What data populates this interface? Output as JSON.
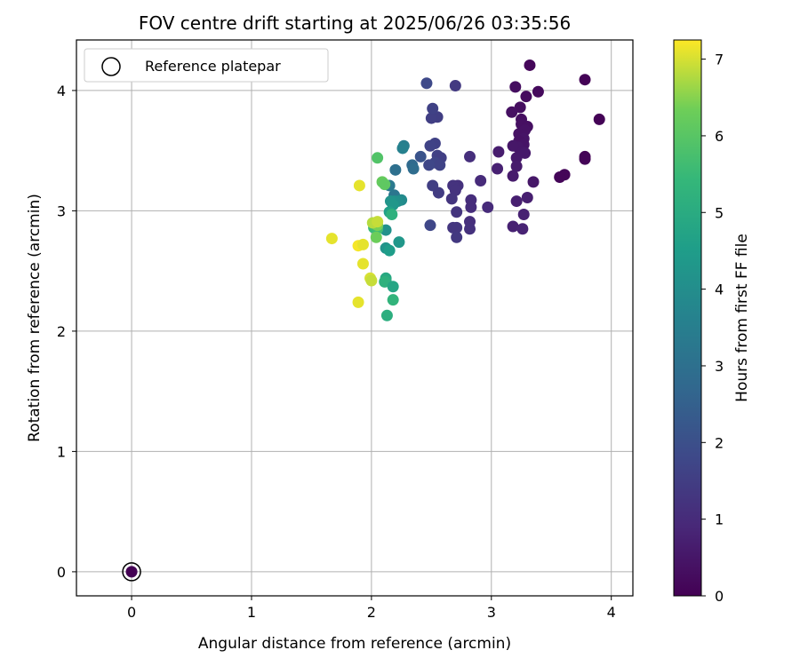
{
  "chart_data": {
    "type": "scatter",
    "title": "FOV centre drift starting at 2025/06/26 03:35:56",
    "xlabel": "Angular distance from reference (arcmin)",
    "ylabel": "Rotation from reference (arcmin)",
    "xlim": [
      -0.46,
      4.18
    ],
    "ylim": [
      -0.2,
      4.42
    ],
    "xticks": [
      0,
      1,
      2,
      3,
      4
    ],
    "yticks": [
      0,
      1,
      2,
      3,
      4
    ],
    "grid": true,
    "legend": {
      "placement": "top-left",
      "entries": [
        "Reference platepar"
      ]
    },
    "reference_point": {
      "x": 0,
      "y": 0,
      "hours": 0
    },
    "colorbar": {
      "label": "Hours from first FF file",
      "range": [
        0,
        7.25
      ],
      "ticks": [
        0,
        1,
        2,
        3,
        4,
        5,
        6,
        7
      ],
      "colormap": "viridis"
    },
    "points": [
      [
        3.78,
        4.09,
        0.05
      ],
      [
        3.9,
        3.76,
        0.05
      ],
      [
        3.78,
        3.45,
        0.05
      ],
      [
        3.78,
        3.43,
        0.08
      ],
      [
        3.61,
        3.3,
        0.1
      ],
      [
        3.57,
        3.28,
        0.1
      ],
      [
        3.32,
        4.21,
        0.15
      ],
      [
        3.39,
        3.99,
        0.2
      ],
      [
        3.29,
        3.95,
        0.25
      ],
      [
        3.24,
        3.86,
        0.3
      ],
      [
        3.2,
        4.03,
        0.3
      ],
      [
        3.17,
        3.82,
        0.35
      ],
      [
        3.25,
        3.76,
        0.3
      ],
      [
        3.25,
        3.72,
        0.35
      ],
      [
        3.3,
        3.7,
        0.35
      ],
      [
        3.28,
        3.67,
        0.4
      ],
      [
        3.23,
        3.64,
        0.4
      ],
      [
        3.27,
        3.6,
        0.45
      ],
      [
        3.23,
        3.58,
        0.4
      ],
      [
        3.27,
        3.55,
        0.45
      ],
      [
        3.22,
        3.53,
        0.5
      ],
      [
        3.18,
        3.54,
        0.5
      ],
      [
        3.26,
        3.49,
        0.5
      ],
      [
        3.28,
        3.48,
        0.55
      ],
      [
        3.21,
        3.44,
        0.55
      ],
      [
        3.21,
        3.37,
        0.6
      ],
      [
        3.18,
        3.29,
        0.6
      ],
      [
        3.35,
        3.24,
        0.5
      ],
      [
        3.06,
        3.49,
        0.65
      ],
      [
        3.05,
        3.35,
        0.75
      ],
      [
        3.3,
        3.11,
        0.7
      ],
      [
        3.21,
        3.08,
        0.7
      ],
      [
        3.27,
        2.97,
        0.75
      ],
      [
        3.18,
        2.87,
        0.75
      ],
      [
        3.26,
        2.85,
        0.8
      ],
      [
        2.97,
        3.03,
        1.0
      ],
      [
        2.91,
        3.25,
        1.0
      ],
      [
        2.83,
        3.09,
        1.05
      ],
      [
        2.83,
        3.03,
        1.05
      ],
      [
        2.82,
        3.45,
        1.1
      ],
      [
        2.82,
        2.91,
        1.1
      ],
      [
        2.82,
        2.85,
        1.15
      ],
      [
        2.72,
        3.21,
        1.15
      ],
      [
        2.68,
        3.21,
        1.2
      ],
      [
        2.7,
        3.17,
        1.2
      ],
      [
        2.67,
        3.1,
        1.25
      ],
      [
        2.71,
        2.99,
        1.25
      ],
      [
        2.68,
        2.86,
        1.3
      ],
      [
        2.71,
        2.86,
        1.3
      ],
      [
        2.71,
        2.78,
        1.35
      ],
      [
        2.7,
        4.04,
        1.4
      ],
      [
        2.55,
        3.78,
        1.5
      ],
      [
        2.5,
        3.77,
        1.55
      ],
      [
        2.51,
        3.85,
        1.6
      ],
      [
        2.53,
        3.56,
        1.6
      ],
      [
        2.49,
        3.54,
        1.65
      ],
      [
        2.55,
        3.46,
        1.6
      ],
      [
        2.58,
        3.44,
        1.55
      ],
      [
        2.53,
        3.4,
        1.7
      ],
      [
        2.57,
        3.38,
        1.65
      ],
      [
        2.48,
        3.38,
        1.75
      ],
      [
        2.51,
        3.21,
        1.5
      ],
      [
        2.56,
        3.15,
        1.45
      ],
      [
        2.49,
        2.88,
        1.75
      ],
      [
        2.46,
        4.06,
        1.8
      ],
      [
        2.41,
        3.45,
        2.1
      ],
      [
        2.34,
        3.38,
        2.8
      ],
      [
        2.35,
        3.35,
        2.9
      ],
      [
        2.27,
        3.54,
        3.5
      ],
      [
        2.26,
        3.52,
        3.6
      ],
      [
        2.2,
        3.34,
        3.0
      ],
      [
        2.19,
        3.13,
        3.2
      ],
      [
        2.15,
        3.21,
        3.3
      ],
      [
        2.25,
        3.09,
        3.9
      ],
      [
        2.22,
        3.08,
        4.0
      ],
      [
        2.19,
        3.08,
        4.1
      ],
      [
        2.16,
        3.08,
        4.2
      ],
      [
        2.18,
        3.05,
        4.3
      ],
      [
        2.15,
        2.99,
        4.6
      ],
      [
        2.17,
        2.97,
        5.2
      ],
      [
        2.12,
        2.84,
        4.1
      ],
      [
        2.12,
        2.69,
        4.2
      ],
      [
        2.23,
        2.74,
        4.3
      ],
      [
        2.15,
        2.67,
        4.5
      ],
      [
        2.02,
        2.86,
        5.5
      ],
      [
        2.05,
        2.85,
        5.6
      ],
      [
        2.04,
        2.78,
        6.3
      ],
      [
        2.05,
        2.88,
        6.4
      ],
      [
        2.05,
        3.44,
        5.9
      ],
      [
        2.09,
        3.24,
        6.2
      ],
      [
        2.11,
        3.22,
        6.1
      ],
      [
        2.12,
        2.44,
        4.9
      ],
      [
        2.12,
        2.42,
        5.0
      ],
      [
        2.11,
        2.41,
        5.2
      ],
      [
        2.18,
        2.37,
        4.8
      ],
      [
        2.18,
        2.26,
        5.3
      ],
      [
        2.13,
        2.13,
        5.1
      ],
      [
        2.01,
        2.9,
        6.8
      ],
      [
        2.05,
        2.91,
        6.9
      ],
      [
        1.67,
        2.77,
        7.1
      ],
      [
        1.89,
        2.71,
        7.2
      ],
      [
        1.93,
        2.72,
        7.1
      ],
      [
        1.93,
        2.56,
        7.1
      ],
      [
        1.9,
        3.21,
        7.1
      ],
      [
        1.99,
        2.44,
        7.0
      ],
      [
        2.0,
        2.42,
        6.9
      ],
      [
        1.89,
        2.24,
        7.1
      ]
    ]
  }
}
